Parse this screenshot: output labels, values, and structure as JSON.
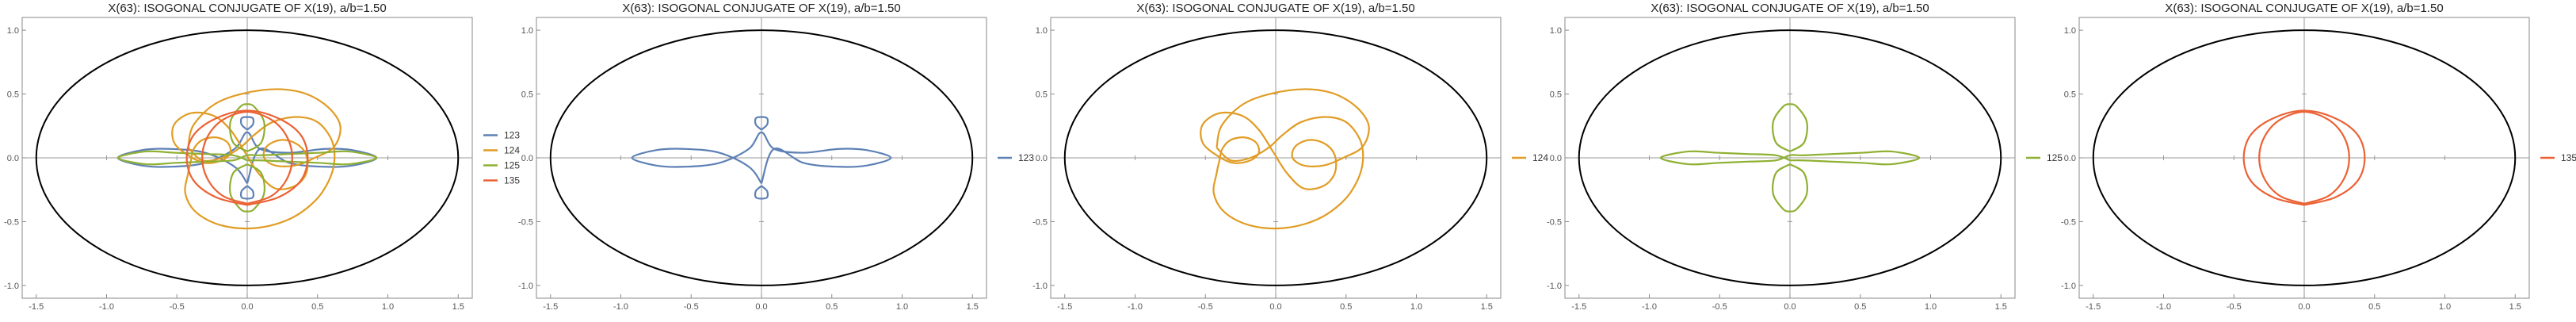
{
  "chart_data": [
    {
      "type": "line",
      "title": "X(63): ISOGONAL CONJUGATE OF X(19), a/b=1.50",
      "xlim": [
        -1.6,
        1.6
      ],
      "ylim": [
        -1.1,
        1.1
      ],
      "xticks": [
        "-1.5",
        "-1.0",
        "-0.5",
        "0.0",
        "0.5",
        "1.0",
        "1.5"
      ],
      "yticks": [
        "-1.0",
        "-0.5",
        "0.0",
        "0.5",
        "1.0"
      ],
      "reference_ellipse": {
        "a": 1.5,
        "b": 1.0,
        "color": "#000000"
      },
      "legend_position": "right",
      "series": [
        {
          "name": "123",
          "color": "#5E81B5",
          "curve": "c123"
        },
        {
          "name": "124",
          "color": "#E19C24",
          "curve": "c124"
        },
        {
          "name": "125",
          "color": "#8FB032",
          "curve": "c125"
        },
        {
          "name": "135",
          "color": "#EB6235",
          "curve": "c135"
        }
      ]
    },
    {
      "type": "line",
      "title": "X(63): ISOGONAL CONJUGATE OF X(19), a/b=1.50",
      "xlim": [
        -1.6,
        1.6
      ],
      "ylim": [
        -1.1,
        1.1
      ],
      "xticks": [
        "-1.5",
        "-1.0",
        "-0.5",
        "0.0",
        "0.5",
        "1.0",
        "1.5"
      ],
      "yticks": [
        "-1.0",
        "-0.5",
        "0.0",
        "0.5",
        "1.0"
      ],
      "reference_ellipse": {
        "a": 1.5,
        "b": 1.0,
        "color": "#000000"
      },
      "legend_position": "right",
      "series": [
        {
          "name": "123",
          "color": "#5E81B5",
          "curve": "c123"
        }
      ]
    },
    {
      "type": "line",
      "title": "X(63): ISOGONAL CONJUGATE OF X(19), a/b=1.50",
      "xlim": [
        -1.6,
        1.6
      ],
      "ylim": [
        -1.1,
        1.1
      ],
      "xticks": [
        "-1.5",
        "-1.0",
        "-0.5",
        "0.0",
        "0.5",
        "1.0",
        "1.5"
      ],
      "yticks": [
        "-1.0",
        "-0.5",
        "0.0",
        "0.5",
        "1.0"
      ],
      "reference_ellipse": {
        "a": 1.5,
        "b": 1.0,
        "color": "#000000"
      },
      "legend_position": "right",
      "series": [
        {
          "name": "124",
          "color": "#E19C24",
          "curve": "c124"
        }
      ]
    },
    {
      "type": "line",
      "title": "X(63): ISOGONAL CONJUGATE OF X(19), a/b=1.50",
      "xlim": [
        -1.6,
        1.6
      ],
      "ylim": [
        -1.1,
        1.1
      ],
      "xticks": [
        "-1.5",
        "-1.0",
        "-0.5",
        "0.0",
        "0.5",
        "1.0",
        "1.5"
      ],
      "yticks": [
        "-1.0",
        "-0.5",
        "0.0",
        "0.5",
        "1.0"
      ],
      "reference_ellipse": {
        "a": 1.5,
        "b": 1.0,
        "color": "#000000"
      },
      "legend_position": "right",
      "series": [
        {
          "name": "125",
          "color": "#8FB032",
          "curve": "c125"
        }
      ]
    },
    {
      "type": "line",
      "title": "X(63): ISOGONAL CONJUGATE OF X(19), a/b=1.50",
      "xlim": [
        -1.6,
        1.6
      ],
      "ylim": [
        -1.1,
        1.1
      ],
      "xticks": [
        "-1.5",
        "-1.0",
        "-0.5",
        "0.0",
        "0.5",
        "1.0",
        "1.5"
      ],
      "yticks": [
        "-1.0",
        "-0.5",
        "0.0",
        "0.5",
        "1.0"
      ],
      "reference_ellipse": {
        "a": 1.5,
        "b": 1.0,
        "color": "#000000"
      },
      "legend_position": "right",
      "series": [
        {
          "name": "135",
          "color": "#EB6235",
          "curve": "c135"
        }
      ]
    }
  ],
  "curves": {
    "c123": [
      [
        [
          0.0,
          -0.2
        ],
        [
          -0.09,
          -0.07
        ],
        [
          -0.3,
          0.04
        ],
        [
          -0.55,
          0.07
        ],
        [
          -0.75,
          0.06
        ],
        [
          -0.92,
          0.0
        ],
        [
          -0.75,
          -0.06
        ],
        [
          -0.55,
          -0.07
        ],
        [
          -0.3,
          -0.04
        ],
        [
          -0.09,
          0.07
        ],
        [
          0.0,
          0.2
        ],
        [
          0.09,
          0.07
        ],
        [
          0.3,
          0.04
        ],
        [
          0.55,
          0.07
        ],
        [
          0.75,
          0.06
        ],
        [
          0.92,
          0.0
        ],
        [
          0.75,
          -0.06
        ],
        [
          0.55,
          -0.07
        ],
        [
          0.3,
          -0.04
        ],
        [
          0.09,
          0.07
        ],
        [
          0.0,
          -0.2
        ]
      ],
      [
        [
          0.0,
          0.22
        ],
        [
          -0.04,
          0.26
        ],
        [
          -0.04,
          0.31
        ],
        [
          0.0,
          0.32
        ],
        [
          0.04,
          0.31
        ],
        [
          0.04,
          0.26
        ],
        [
          0.0,
          0.22
        ]
      ],
      [
        [
          0.0,
          -0.22
        ],
        [
          -0.04,
          -0.26
        ],
        [
          -0.04,
          -0.31
        ],
        [
          0.0,
          -0.32
        ],
        [
          0.04,
          -0.31
        ],
        [
          0.04,
          -0.26
        ],
        [
          0.0,
          -0.22
        ]
      ]
    ],
    "c124": [
      [
        [
          -0.42,
          0.08
        ],
        [
          -0.38,
          0.26
        ],
        [
          -0.2,
          0.44
        ],
        [
          0.1,
          0.53
        ],
        [
          0.36,
          0.52
        ],
        [
          0.55,
          0.42
        ],
        [
          0.66,
          0.26
        ],
        [
          0.62,
          0.09
        ],
        [
          0.48,
          0.0
        ],
        [
          0.34,
          -0.06
        ],
        [
          0.2,
          -0.06
        ],
        [
          0.12,
          0.0
        ],
        [
          0.14,
          0.09
        ],
        [
          0.24,
          0.14
        ],
        [
          0.35,
          0.11
        ],
        [
          0.42,
          0.02
        ],
        [
          0.42,
          -0.12
        ],
        [
          0.34,
          -0.22
        ],
        [
          0.2,
          -0.24
        ],
        [
          0.08,
          -0.12
        ],
        [
          -0.02,
          0.05
        ],
        [
          -0.12,
          0.22
        ],
        [
          -0.24,
          0.33
        ],
        [
          -0.4,
          0.35
        ],
        [
          -0.52,
          0.26
        ],
        [
          -0.52,
          0.12
        ],
        [
          -0.42,
          0.02
        ],
        [
          -0.3,
          -0.04
        ],
        [
          -0.18,
          -0.02
        ],
        [
          -0.12,
          0.04
        ],
        [
          -0.14,
          0.12
        ],
        [
          -0.22,
          0.16
        ],
        [
          -0.32,
          0.14
        ],
        [
          -0.38,
          0.07
        ],
        [
          -0.4,
          -0.02
        ],
        [
          -0.42,
          -0.12
        ],
        [
          -0.44,
          -0.28
        ],
        [
          -0.36,
          -0.43
        ],
        [
          -0.18,
          -0.53
        ],
        [
          0.06,
          -0.55
        ],
        [
          0.3,
          -0.48
        ],
        [
          0.48,
          -0.34
        ],
        [
          0.58,
          -0.18
        ],
        [
          0.62,
          -0.02
        ],
        [
          0.6,
          0.14
        ],
        [
          0.5,
          0.28
        ],
        [
          0.35,
          0.32
        ],
        [
          0.18,
          0.28
        ],
        [
          0.05,
          0.18
        ],
        [
          -0.05,
          0.08
        ],
        [
          -0.18,
          0.0
        ],
        [
          -0.32,
          -0.02
        ],
        [
          -0.42,
          0.08
        ]
      ]
    ],
    "c125": [
      [
        [
          0.0,
          -0.02
        ],
        [
          -0.1,
          0.02
        ],
        [
          -0.3,
          0.03
        ],
        [
          -0.52,
          0.04
        ],
        [
          -0.72,
          0.05
        ],
        [
          -0.92,
          0.0
        ],
        [
          -0.72,
          -0.05
        ],
        [
          -0.52,
          -0.04
        ],
        [
          -0.3,
          -0.03
        ],
        [
          -0.1,
          -0.02
        ],
        [
          0.0,
          0.02
        ],
        [
          0.1,
          0.02
        ],
        [
          0.3,
          0.03
        ],
        [
          0.52,
          0.04
        ],
        [
          0.72,
          0.05
        ],
        [
          0.92,
          0.0
        ],
        [
          0.72,
          -0.05
        ],
        [
          0.52,
          -0.04
        ],
        [
          0.3,
          -0.03
        ],
        [
          0.1,
          -0.02
        ],
        [
          0.0,
          -0.02
        ]
      ],
      [
        [
          0.0,
          0.05
        ],
        [
          -0.1,
          0.12
        ],
        [
          -0.12,
          0.28
        ],
        [
          -0.05,
          0.4
        ],
        [
          0.0,
          0.42
        ],
        [
          0.05,
          0.4
        ],
        [
          0.12,
          0.28
        ],
        [
          0.1,
          0.12
        ],
        [
          0.0,
          0.05
        ]
      ],
      [
        [
          0.0,
          -0.05
        ],
        [
          -0.1,
          -0.12
        ],
        [
          -0.12,
          -0.28
        ],
        [
          -0.05,
          -0.4
        ],
        [
          0.0,
          -0.42
        ],
        [
          0.05,
          -0.4
        ],
        [
          0.12,
          -0.28
        ],
        [
          0.1,
          -0.12
        ],
        [
          0.0,
          -0.05
        ]
      ]
    ],
    "c135": [
      [
        [
          0.0,
          -0.37
        ],
        [
          -0.22,
          -0.31
        ],
        [
          -0.38,
          -0.18
        ],
        [
          -0.43,
          0.0
        ],
        [
          -0.38,
          0.18
        ],
        [
          -0.22,
          0.31
        ],
        [
          0.0,
          0.37
        ],
        [
          0.22,
          0.31
        ],
        [
          0.38,
          0.18
        ],
        [
          0.43,
          0.0
        ],
        [
          0.38,
          -0.18
        ],
        [
          0.22,
          -0.31
        ],
        [
          0.0,
          -0.37
        ]
      ],
      [
        [
          0.0,
          -0.36
        ],
        [
          -0.17,
          -0.3
        ],
        [
          -0.28,
          -0.17
        ],
        [
          -0.32,
          0.0
        ],
        [
          -0.28,
          0.17
        ],
        [
          -0.17,
          0.3
        ],
        [
          0.0,
          0.36
        ],
        [
          0.17,
          0.3
        ],
        [
          0.28,
          0.17
        ],
        [
          0.32,
          0.0
        ],
        [
          0.28,
          -0.17
        ],
        [
          0.17,
          -0.3
        ],
        [
          0.0,
          -0.36
        ]
      ]
    ]
  }
}
